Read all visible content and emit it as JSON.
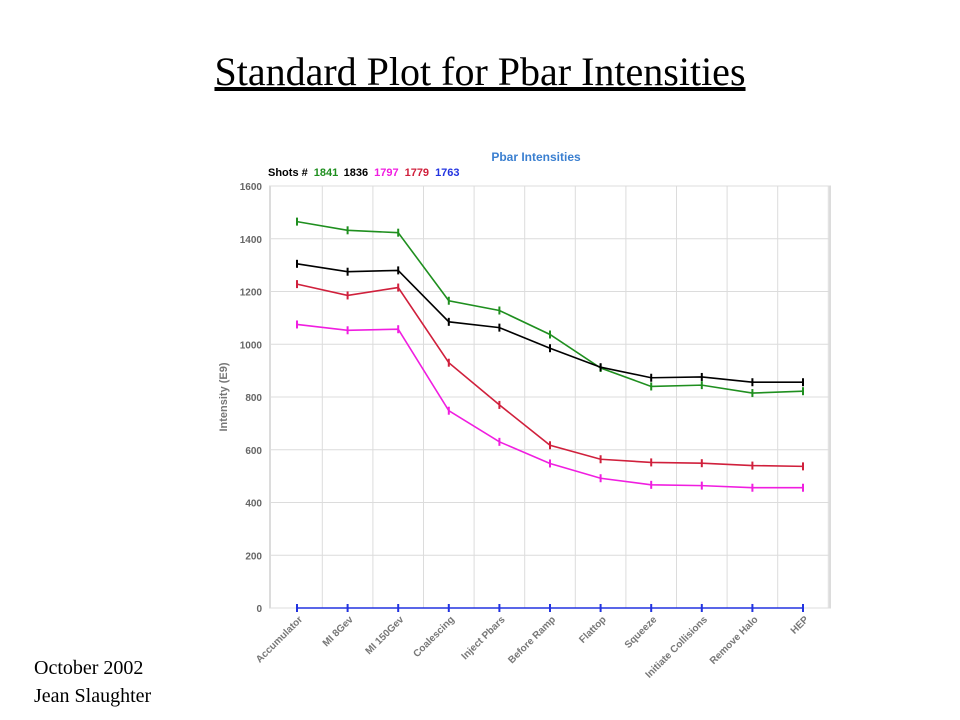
{
  "slide": {
    "title": "Standard Plot for Pbar Intensities",
    "footer_date": "October 2002",
    "footer_author": "Jean Slaughter"
  },
  "chart_data": {
    "type": "line",
    "title": "Pbar Intensities",
    "title_color": "#3a7fd0",
    "legend_prefix": "Shots #",
    "xlabel": "",
    "ylabel": "Intensity (E9)",
    "ylim": [
      0,
      1600
    ],
    "yticks": [
      0,
      200,
      400,
      600,
      800,
      1000,
      1200,
      1400,
      1600
    ],
    "grid": true,
    "legend_position": "top-left",
    "categories": [
      "Accumulator",
      "MI 8Gev",
      "MI 150Gev",
      "Coalescing",
      "Inject Pbars",
      "Before Ramp",
      "Flattop",
      "Squeeze",
      "Initiate Collisions",
      "Remove Halo",
      "HEP"
    ],
    "series": [
      {
        "name": "1841",
        "color": "#1f8f1f",
        "values": [
          1465,
          1432,
          1423,
          1165,
          1128,
          1037,
          910,
          840,
          845,
          815,
          822
        ]
      },
      {
        "name": "1836",
        "color": "#000000",
        "values": [
          1305,
          1275,
          1280,
          1085,
          1063,
          985,
          913,
          873,
          876,
          856,
          856
        ]
      },
      {
        "name": "1797",
        "color": "#f01ee0",
        "values": [
          1075,
          1053,
          1057,
          748,
          630,
          548,
          492,
          467,
          464,
          456,
          456
        ]
      },
      {
        "name": "1779",
        "color": "#d0203c",
        "values": [
          1228,
          1185,
          1215,
          930,
          770,
          617,
          564,
          552,
          549,
          540,
          537
        ]
      },
      {
        "name": "1763",
        "color": "#2233e0",
        "values": [
          0,
          0,
          0,
          0,
          0,
          0,
          0,
          0,
          0,
          0,
          0
        ]
      }
    ]
  }
}
